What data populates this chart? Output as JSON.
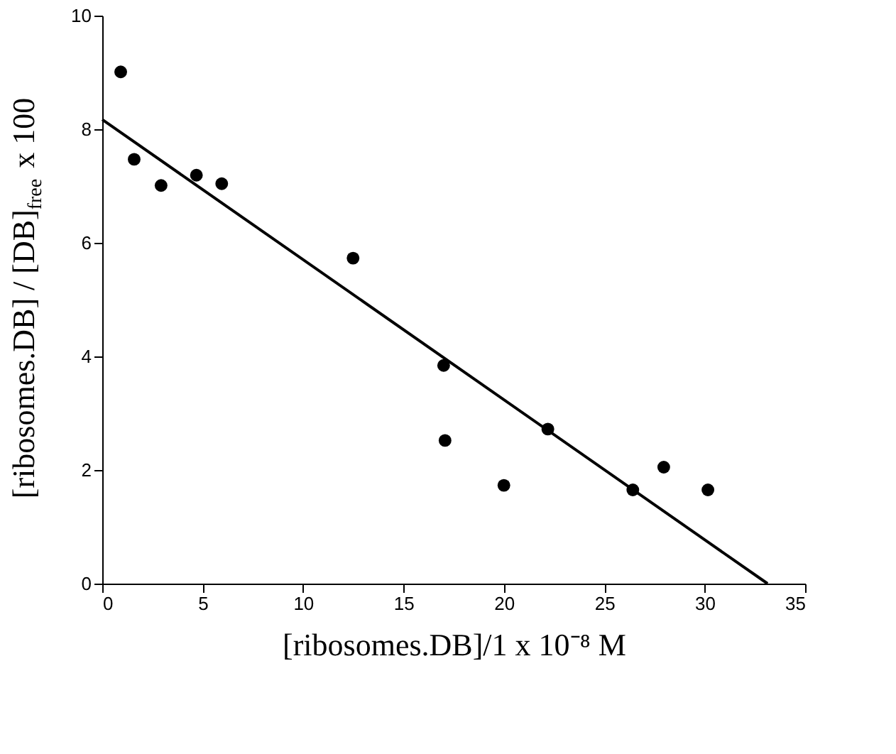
{
  "chart_data": {
    "type": "scatter",
    "xlabel": "[ribosomes.DB]/1 x 10⁻⁸ M",
    "ylabel": "[ribosomes.DB] / [DB]$_{free}$ x 100",
    "series": [
      {
        "color": "#000000",
        "marker": "circle",
        "x": [
          0.92,
          1.59,
          2.93,
          4.69,
          5.95,
          12.49,
          17.0,
          17.07,
          20.0,
          22.19,
          26.42,
          27.96,
          30.16
        ],
        "values": [
          9.01,
          7.47,
          7.01,
          7.19,
          7.04,
          5.73,
          3.84,
          2.52,
          1.73,
          2.72,
          1.65,
          2.05,
          1.65
        ]
      },
      {
        "type": "line",
        "marker": "none",
        "color": "#000000",
        "x": [
          0,
          33.13
        ],
        "values": [
          8.17,
          0
        ]
      }
    ],
    "xlim": [
      0,
      35
    ],
    "xticks": [
      0,
      5,
      10,
      15,
      20,
      25,
      30,
      35
    ],
    "ylim": [
      0,
      10
    ],
    "yticks": [
      0,
      2,
      4,
      6,
      8,
      10
    ],
    "grid": false,
    "line_style": "solid"
  }
}
